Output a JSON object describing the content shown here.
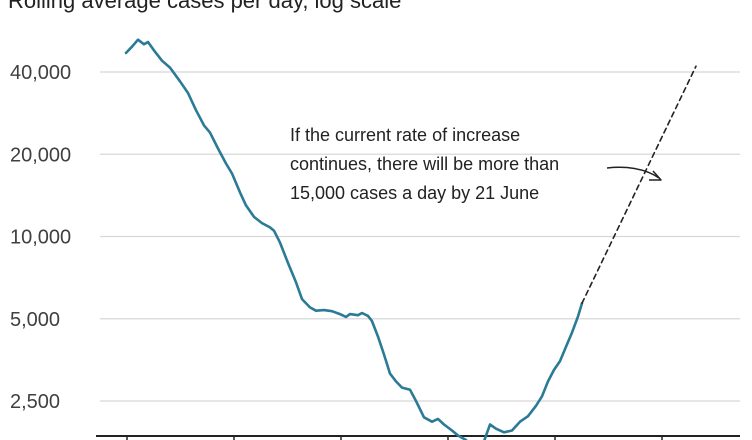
{
  "chart_data": {
    "type": "line",
    "subtitle": "Rolling average cases per day, log scale",
    "y_scale": "log",
    "ylim": [
      1500,
      55000
    ],
    "y_ticks": [
      {
        "value": 2500,
        "label": "2,500"
      },
      {
        "value": 5000,
        "label": "5,000"
      },
      {
        "value": 10000,
        "label": "10,000"
      },
      {
        "value": 20000,
        "label": "20,000"
      },
      {
        "value": 40000,
        "label": "40,000"
      }
    ],
    "grid": true,
    "colors": {
      "line": "#2b7a96",
      "grid": "#d8d8d8",
      "axis": "#222222",
      "text": "#404040"
    },
    "series": [
      {
        "values": [
          [
            0,
            47000
          ],
          [
            3,
            49500
          ],
          [
            6,
            52500
          ],
          [
            9,
            50500
          ],
          [
            11,
            51500
          ],
          [
            14,
            48000
          ],
          [
            18,
            44000
          ],
          [
            22,
            41500
          ],
          [
            27,
            37000
          ],
          [
            31,
            33500
          ],
          [
            35,
            29000
          ],
          [
            39,
            25500
          ],
          [
            42,
            24000
          ],
          [
            46,
            21000
          ],
          [
            50,
            18500
          ],
          [
            53,
            17000
          ],
          [
            57,
            14500
          ],
          [
            60,
            13000
          ],
          [
            64,
            11800
          ],
          [
            68,
            11200
          ],
          [
            72,
            10800
          ],
          [
            74,
            10500
          ],
          [
            77,
            9500
          ],
          [
            81,
            8000
          ],
          [
            85,
            6800
          ],
          [
            88,
            5900
          ],
          [
            92,
            5500
          ],
          [
            95,
            5350
          ],
          [
            99,
            5380
          ],
          [
            103,
            5330
          ],
          [
            107,
            5200
          ],
          [
            110,
            5080
          ],
          [
            112,
            5200
          ],
          [
            116,
            5150
          ],
          [
            118,
            5250
          ],
          [
            121,
            5120
          ],
          [
            123,
            4900
          ],
          [
            126,
            4300
          ],
          [
            129,
            3700
          ],
          [
            132,
            3150
          ],
          [
            135,
            2950
          ],
          [
            138,
            2800
          ],
          [
            142,
            2750
          ],
          [
            145,
            2500
          ],
          [
            149,
            2180
          ],
          [
            153,
            2100
          ],
          [
            156,
            2150
          ],
          [
            159,
            2050
          ],
          [
            163,
            1950
          ],
          [
            166,
            1870
          ],
          [
            170,
            1800
          ],
          [
            172,
            1680
          ],
          [
            175,
            1700
          ],
          [
            179,
            1780
          ],
          [
            182,
            2050
          ],
          [
            185,
            1980
          ],
          [
            189,
            1920
          ],
          [
            193,
            1950
          ],
          [
            197,
            2100
          ],
          [
            201,
            2200
          ],
          [
            205,
            2400
          ],
          [
            208,
            2600
          ],
          [
            211,
            2950
          ],
          [
            214,
            3250
          ],
          [
            217,
            3500
          ],
          [
            220,
            3950
          ],
          [
            223,
            4450
          ],
          [
            226,
            5100
          ],
          [
            228,
            5700
          ]
        ]
      },
      {
        "style": "dashed",
        "values": [
          [
            228,
            5700
          ],
          [
            285,
            42000
          ]
        ]
      }
    ],
    "annotations": [
      {
        "lines": [
          "If the current rate of increase",
          "continues, there will be more than",
          "15,000 cases a day by 21 June"
        ]
      }
    ]
  }
}
